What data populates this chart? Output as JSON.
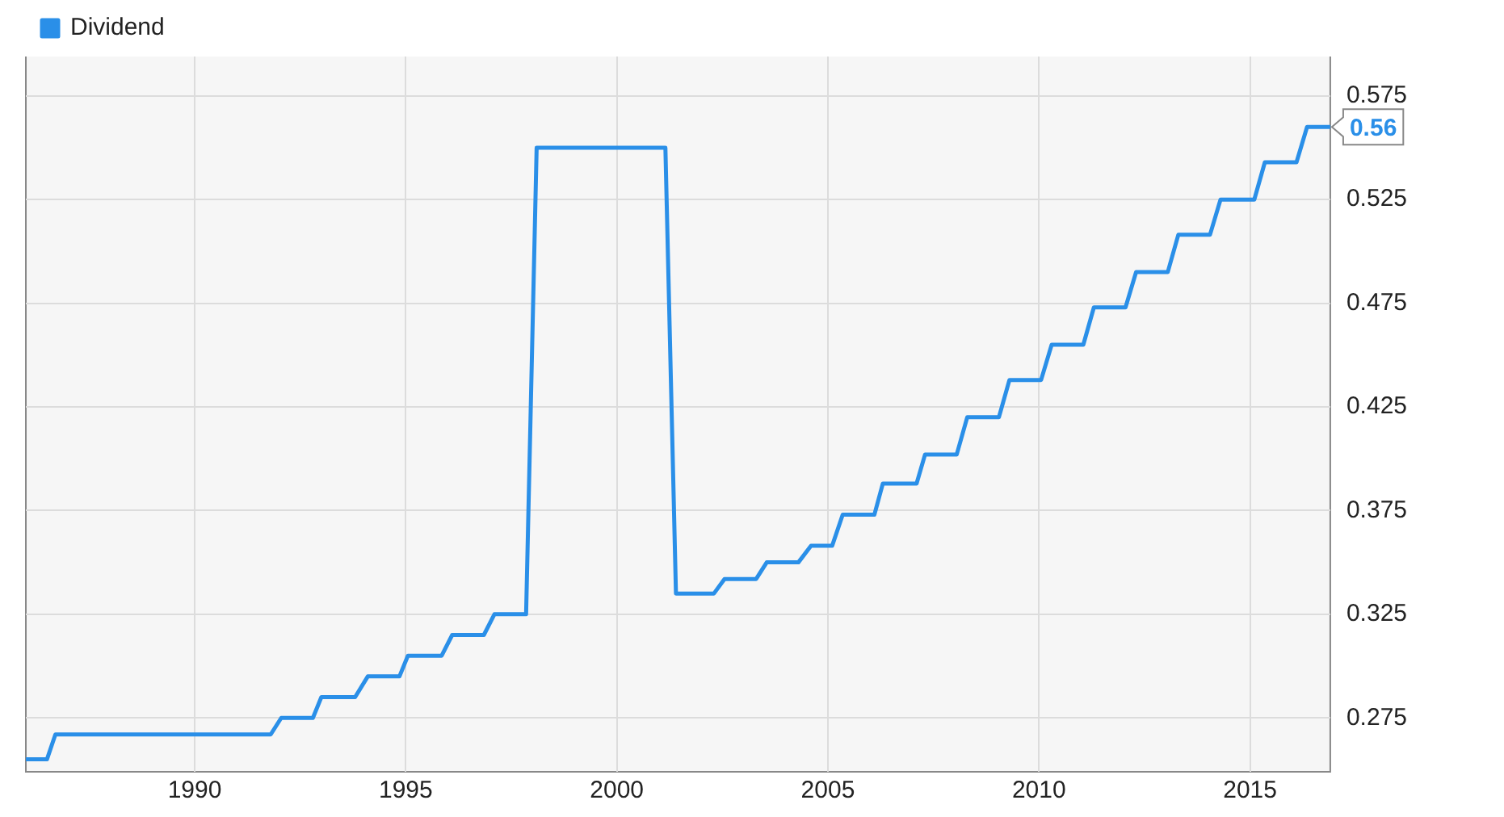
{
  "chart_data": {
    "type": "line",
    "x": [
      1986.0,
      1986.5,
      1986.7,
      1991.8,
      1992.05,
      1992.8,
      1993.0,
      1993.8,
      1994.1,
      1994.85,
      1995.05,
      1995.85,
      1996.1,
      1996.85,
      1997.1,
      1997.85,
      1998.1,
      2001.15,
      2001.4,
      2002.3,
      2002.55,
      2003.3,
      2003.55,
      2004.3,
      2004.6,
      2005.1,
      2005.35,
      2006.1,
      2006.3,
      2007.1,
      2007.3,
      2008.05,
      2008.3,
      2009.05,
      2009.3,
      2010.05,
      2010.3,
      2011.05,
      2011.3,
      2012.05,
      2012.3,
      2013.05,
      2013.3,
      2014.05,
      2014.3,
      2015.1,
      2015.35,
      2016.1,
      2016.35,
      2016.9
    ],
    "series": [
      {
        "name": "Dividend",
        "color": "#2a8fe8",
        "values": [
          0.255,
          0.255,
          0.267,
          0.267,
          0.275,
          0.275,
          0.285,
          0.285,
          0.295,
          0.295,
          0.305,
          0.305,
          0.315,
          0.315,
          0.325,
          0.325,
          0.55,
          0.55,
          0.335,
          0.335,
          0.342,
          0.342,
          0.35,
          0.35,
          0.358,
          0.358,
          0.373,
          0.373,
          0.388,
          0.388,
          0.402,
          0.402,
          0.42,
          0.42,
          0.438,
          0.438,
          0.455,
          0.455,
          0.473,
          0.473,
          0.49,
          0.49,
          0.508,
          0.508,
          0.525,
          0.525,
          0.543,
          0.543,
          0.56,
          0.56
        ]
      }
    ],
    "xlim": [
      1986,
      2016.9
    ],
    "xticks": [
      1990,
      1995,
      2000,
      2005,
      2010,
      2015
    ],
    "ylim": [
      0.249,
      0.594
    ],
    "yticks": [
      0.275,
      0.325,
      0.375,
      0.425,
      0.475,
      0.525,
      0.575
    ],
    "grid": true,
    "legend": "top left",
    "marker": "none",
    "line_style": "solid",
    "annotations": [
      {
        "text": "0.56",
        "x": 2016.9,
        "y": 0.56
      }
    ]
  }
}
